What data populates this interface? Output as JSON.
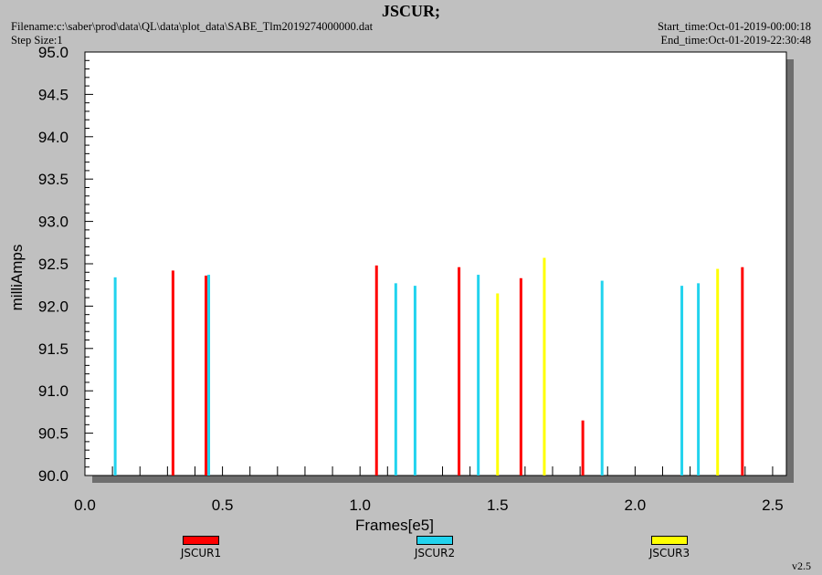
{
  "header": {
    "filename": "Filename:c:\\saber\\prod\\data\\QL\\data\\plot_data\\SABE_Tlm2019274000000.dat",
    "step_size": "Step Size:1",
    "start_time": "Start_time:Oct-01-2019-00:00:18",
    "end_time": "End_time:Oct-01-2019-22:30:48",
    "version": "v2.5"
  },
  "chart_data": {
    "type": "bar",
    "title": "JSCUR;",
    "xlabel": "Frames[e5]",
    "ylabel": "milliAmps",
    "xlim": [
      0.0,
      2.55
    ],
    "ylim": [
      90.0,
      95.0
    ],
    "x_ticks": [
      "0.0",
      "0.5",
      "1.0",
      "1.5",
      "2.0",
      "2.5"
    ],
    "y_ticks": [
      "90.0",
      "90.5",
      "91.0",
      "91.5",
      "92.0",
      "92.5",
      "93.0",
      "93.5",
      "94.0",
      "94.5",
      "95.0"
    ],
    "grid": false,
    "legend_position": "bottom",
    "series": [
      {
        "name": "JSCUR1",
        "color": "#ff0000",
        "points": [
          [
            0.32,
            92.42
          ],
          [
            0.44,
            92.36
          ],
          [
            1.06,
            92.48
          ],
          [
            1.36,
            92.46
          ],
          [
            1.585,
            92.33
          ],
          [
            1.81,
            90.65
          ],
          [
            2.39,
            92.46
          ]
        ]
      },
      {
        "name": "JSCUR2",
        "color": "#22d3ee",
        "points": [
          [
            0.11,
            92.34
          ],
          [
            0.45,
            92.37
          ],
          [
            1.13,
            92.27
          ],
          [
            1.2,
            92.24
          ],
          [
            1.43,
            92.37
          ],
          [
            1.88,
            92.3
          ],
          [
            2.17,
            92.24
          ],
          [
            2.23,
            92.27
          ]
        ]
      },
      {
        "name": "JSCUR3",
        "color": "#ffff00",
        "points": [
          [
            1.5,
            92.15
          ],
          [
            1.67,
            92.57
          ],
          [
            2.3,
            92.44
          ]
        ]
      }
    ]
  }
}
